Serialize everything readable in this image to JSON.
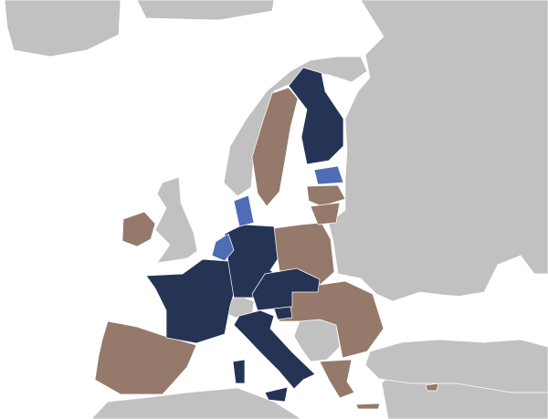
{
  "colors": {
    "sea": "#ffffff",
    "land": "#c1c1c1",
    "dark": "#253455",
    "medium": "#4f6db5",
    "brown": "#95796b",
    "border": "#ffffff"
  }
}
